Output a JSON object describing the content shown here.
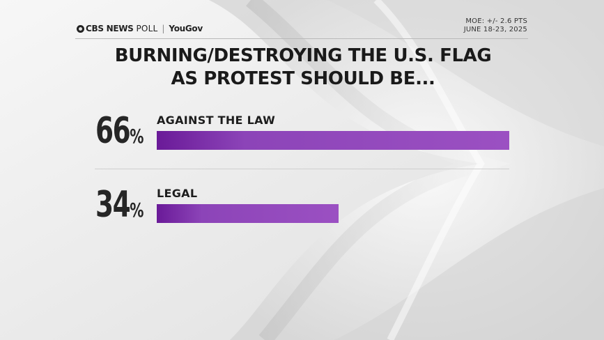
{
  "brand": {
    "network": "CBS NEWS",
    "poll": "POLL",
    "partner": "YouGov"
  },
  "meta": {
    "moe": "MOE: +/- 2.6 PTS",
    "dates": "JUNE 18-23, 2025"
  },
  "chart_data": {
    "type": "bar",
    "orientation": "horizontal",
    "title": "BURNING/DESTROYING THE U.S. FLAG AS PROTEST SHOULD BE...",
    "title_lines": [
      "BURNING/DESTROYING THE U.S. FLAG",
      "AS PROTEST SHOULD BE..."
    ],
    "categories": [
      "AGAINST THE LAW",
      "LEGAL"
    ],
    "values": [
      66,
      34
    ],
    "value_labels": [
      "66",
      "34"
    ],
    "unit": "%",
    "xlim": [
      0,
      66
    ],
    "grid": false,
    "bar_color_start": "#6a1a98",
    "bar_color_end": "#9b50c2"
  }
}
